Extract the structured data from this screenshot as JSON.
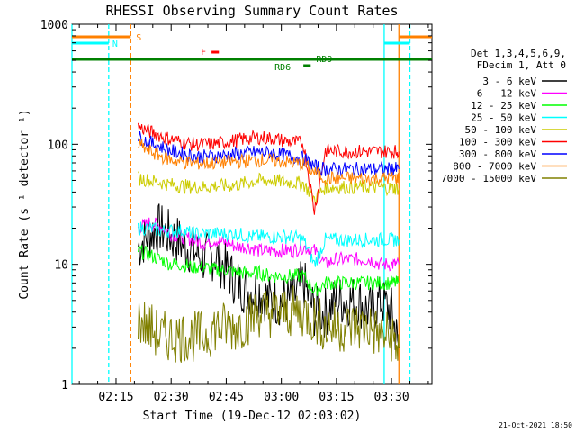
{
  "chart_data": {
    "type": "line",
    "title": "RHESSI Observing Summary Count Rates",
    "xlabel": "Start Time (19-Dec-12 02:03:02)",
    "ylabel": "Count Rate (s⁻¹ detector⁻¹)",
    "yscale": "log",
    "ylim": [
      1,
      1000
    ],
    "xlim": [
      "02:03",
      "03:41"
    ],
    "x_ticks": [
      "02:15",
      "02:30",
      "02:45",
      "03:00",
      "03:15",
      "03:30"
    ],
    "y_ticks": [
      "1",
      "10",
      "100",
      "1000"
    ],
    "legend_header": [
      "Det 1,3,4,5,6,9,",
      "FDecim 1, Att 0"
    ],
    "legend_position": "right",
    "footer": "21-Oct-2021 18:50",
    "series": [
      {
        "name": "3 - 6 keV",
        "color": "#000000",
        "x": [
          "02:21",
          "02:24",
          "02:27",
          "02:30",
          "02:33",
          "02:36",
          "02:39",
          "02:42",
          "02:45",
          "02:48",
          "02:51",
          "02:54",
          "02:57",
          "03:00",
          "03:03",
          "03:06",
          "03:09",
          "03:12",
          "03:15",
          "03:18",
          "03:21",
          "03:24",
          "03:27",
          "03:30",
          "03:32"
        ],
        "values": [
          14,
          18,
          20,
          17,
          15,
          13,
          11,
          12,
          9,
          7,
          6,
          6,
          5,
          5,
          5,
          7,
          4,
          4,
          5,
          5,
          5,
          4,
          5,
          4,
          2
        ]
      },
      {
        "name": "6 - 12 keV",
        "color": "#ff00ff",
        "x": [
          "02:21",
          "02:24",
          "02:27",
          "02:30",
          "02:33",
          "02:36",
          "02:39",
          "02:42",
          "02:45",
          "02:48",
          "02:51",
          "02:54",
          "02:57",
          "03:00",
          "03:03",
          "03:06",
          "03:09",
          "03:12",
          "03:15",
          "03:18",
          "03:21",
          "03:24",
          "03:27",
          "03:30",
          "03:32"
        ],
        "values": [
          20,
          22,
          21,
          18,
          17,
          16,
          15,
          16,
          15,
          14,
          14,
          13,
          13,
          13,
          13,
          14,
          13,
          10,
          11,
          11,
          11,
          11,
          10,
          10,
          10
        ]
      },
      {
        "name": "12 - 25 keV",
        "color": "#00ff00",
        "x": [
          "02:21",
          "02:24",
          "02:27",
          "02:30",
          "02:33",
          "02:36",
          "02:39",
          "02:42",
          "02:45",
          "02:48",
          "02:51",
          "02:54",
          "02:57",
          "03:00",
          "03:03",
          "03:06",
          "03:09",
          "03:12",
          "03:15",
          "03:18",
          "03:21",
          "03:24",
          "03:27",
          "03:30",
          "03:32"
        ],
        "values": [
          13,
          12,
          11,
          10,
          10,
          9.5,
          9.5,
          9,
          9,
          8.5,
          8.5,
          8.5,
          8,
          8,
          8,
          8,
          6,
          7,
          7,
          7,
          7,
          7,
          7,
          7,
          7
        ]
      },
      {
        "name": "25 - 50 keV",
        "color": "#00ffff",
        "x": [
          "02:21",
          "02:24",
          "02:27",
          "02:30",
          "02:33",
          "02:36",
          "02:39",
          "02:42",
          "02:45",
          "02:48",
          "02:51",
          "02:54",
          "02:57",
          "03:00",
          "03:03",
          "03:06",
          "03:09",
          "03:12",
          "03:15",
          "03:18",
          "03:21",
          "03:24",
          "03:27",
          "03:30",
          "03:32"
        ],
        "values": [
          20,
          20,
          19,
          19,
          19,
          18,
          18,
          18,
          18,
          18,
          17,
          17,
          17,
          17,
          17,
          16,
          10,
          16,
          16,
          16,
          16,
          16,
          16,
          16,
          16
        ]
      },
      {
        "name": "50 - 100 keV",
        "color": "#cccc00",
        "x": [
          "02:21",
          "02:24",
          "02:27",
          "02:30",
          "02:33",
          "02:36",
          "02:39",
          "02:42",
          "02:45",
          "02:48",
          "02:51",
          "02:54",
          "02:57",
          "03:00",
          "03:03",
          "03:06",
          "03:09",
          "03:12",
          "03:15",
          "03:18",
          "03:21",
          "03:24",
          "03:27",
          "03:30",
          "03:32"
        ],
        "values": [
          52,
          50,
          48,
          46,
          45,
          44,
          44,
          45,
          45,
          46,
          48,
          50,
          50,
          49,
          48,
          47,
          35,
          44,
          44,
          44,
          44,
          44,
          44,
          43,
          43
        ]
      },
      {
        "name": "100 - 300 keV",
        "color": "#ff0000",
        "x": [
          "02:21",
          "02:24",
          "02:27",
          "02:30",
          "02:33",
          "02:36",
          "02:39",
          "02:42",
          "02:45",
          "02:48",
          "02:51",
          "02:54",
          "02:57",
          "03:00",
          "03:03",
          "03:06",
          "03:09",
          "03:12",
          "03:15",
          "03:18",
          "03:21",
          "03:24",
          "03:27",
          "03:30",
          "03:32"
        ],
        "values": [
          140,
          128,
          118,
          110,
          104,
          100,
          100,
          101,
          104,
          108,
          112,
          114,
          112,
          108,
          104,
          102,
          28,
          88,
          88,
          87,
          87,
          87,
          87,
          87,
          87
        ]
      },
      {
        "name": "300 - 800 keV",
        "color": "#0000ff",
        "x": [
          "02:21",
          "02:24",
          "02:27",
          "02:30",
          "02:33",
          "02:36",
          "02:39",
          "02:42",
          "02:45",
          "02:48",
          "02:51",
          "02:54",
          "02:57",
          "03:00",
          "03:03",
          "03:06",
          "03:09",
          "03:12",
          "03:15",
          "03:18",
          "03:21",
          "03:24",
          "03:27",
          "03:30",
          "03:32"
        ],
        "values": [
          115,
          104,
          96,
          88,
          84,
          80,
          79,
          80,
          81,
          83,
          85,
          86,
          85,
          82,
          79,
          76,
          65,
          62,
          62,
          62,
          62,
          62,
          62,
          62,
          62
        ]
      },
      {
        "name": "800 - 7000 keV",
        "color": "#ff8000",
        "x": [
          "02:21",
          "02:24",
          "02:27",
          "02:30",
          "02:33",
          "02:36",
          "02:39",
          "02:42",
          "02:45",
          "02:48",
          "02:51",
          "02:54",
          "02:57",
          "03:00",
          "03:03",
          "03:06",
          "03:09",
          "03:12",
          "03:15",
          "03:18",
          "03:21",
          "03:24",
          "03:27",
          "03:30",
          "03:32"
        ],
        "values": [
          100,
          88,
          80,
          74,
          71,
          70,
          69,
          70,
          71,
          72,
          73,
          74,
          73,
          72,
          70,
          68,
          58,
          52,
          52,
          52,
          52,
          52,
          52,
          52,
          52
        ]
      },
      {
        "name": "7000 - 15000 keV",
        "color": "#808000",
        "x": [
          "02:21",
          "02:24",
          "02:27",
          "02:30",
          "02:33",
          "02:36",
          "02:39",
          "02:42",
          "02:45",
          "02:48",
          "02:51",
          "02:54",
          "02:57",
          "03:00",
          "03:03",
          "03:06",
          "03:09",
          "03:12",
          "03:15",
          "03:18",
          "03:21",
          "03:24",
          "03:27",
          "03:30",
          "03:32"
        ],
        "values": [
          3.5,
          3,
          2.5,
          2.5,
          2.5,
          2.5,
          2.5,
          3,
          3,
          3,
          3.5,
          4,
          4,
          4,
          4,
          4,
          3.5,
          3,
          3,
          3,
          3,
          3,
          2.5,
          2.5,
          2
        ]
      }
    ],
    "flags": [
      {
        "label": "S",
        "color": "#ff8000"
      },
      {
        "label": "N",
        "color": "#00ffff"
      },
      {
        "label": "F",
        "color": "#ff0000"
      },
      {
        "label": "RD9",
        "color": "#008000"
      },
      {
        "label": "RD6",
        "color": "#008000"
      }
    ]
  }
}
